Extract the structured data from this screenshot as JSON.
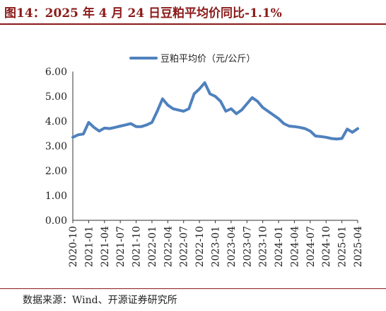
{
  "header": {
    "title": "图14：2025 年 4 月 24 日豆粕平均价同比-1.1%"
  },
  "footer": {
    "source": "数据来源：Wind、开源证券研究所"
  },
  "style": {
    "series_color": "#4f81bd",
    "title_color": "#8b1a1a"
  },
  "chart_data": {
    "type": "line",
    "title": "",
    "xlabel": "",
    "ylabel": "",
    "ylim": [
      0,
      6
    ],
    "yticks": [
      "0.00",
      "1.00",
      "2.00",
      "3.00",
      "4.00",
      "5.00",
      "6.00"
    ],
    "xticks": [
      "2020-10",
      "2021-01",
      "2021-04",
      "2021-07",
      "2021-10",
      "2022-01",
      "2022-04",
      "2022-07",
      "2022-10",
      "2023-01",
      "2023-04",
      "2023-07",
      "2023-10",
      "2024-01",
      "2024-04",
      "2024-07",
      "2024-10",
      "2025-01",
      "2025-04"
    ],
    "legend": {
      "position": "top-center"
    },
    "grid": false,
    "series": [
      {
        "name": "豆粕平均价（元/公斤）",
        "points": [
          [
            "2020-10",
            3.35
          ],
          [
            "2020-11",
            3.45
          ],
          [
            "2020-12",
            3.48
          ],
          [
            "2021-01",
            3.95
          ],
          [
            "2021-02",
            3.75
          ],
          [
            "2021-03",
            3.6
          ],
          [
            "2021-04",
            3.72
          ],
          [
            "2021-05",
            3.7
          ],
          [
            "2021-06",
            3.75
          ],
          [
            "2021-07",
            3.8
          ],
          [
            "2021-08",
            3.85
          ],
          [
            "2021-09",
            3.9
          ],
          [
            "2021-10",
            3.78
          ],
          [
            "2021-11",
            3.78
          ],
          [
            "2021-12",
            3.85
          ],
          [
            "2022-01",
            3.95
          ],
          [
            "2022-02",
            4.4
          ],
          [
            "2022-03",
            4.9
          ],
          [
            "2022-04",
            4.65
          ],
          [
            "2022-05",
            4.5
          ],
          [
            "2022-06",
            4.45
          ],
          [
            "2022-07",
            4.4
          ],
          [
            "2022-08",
            4.5
          ],
          [
            "2022-09",
            5.1
          ],
          [
            "2022-10",
            5.3
          ],
          [
            "2022-11",
            5.55
          ],
          [
            "2022-12",
            5.1
          ],
          [
            "2023-01",
            5.0
          ],
          [
            "2023-02",
            4.8
          ],
          [
            "2023-03",
            4.4
          ],
          [
            "2023-04",
            4.5
          ],
          [
            "2023-05",
            4.3
          ],
          [
            "2023-06",
            4.45
          ],
          [
            "2023-07",
            4.7
          ],
          [
            "2023-08",
            4.95
          ],
          [
            "2023-09",
            4.8
          ],
          [
            "2023-10",
            4.55
          ],
          [
            "2023-11",
            4.4
          ],
          [
            "2023-12",
            4.25
          ],
          [
            "2024-01",
            4.1
          ],
          [
            "2024-02",
            3.9
          ],
          [
            "2024-03",
            3.8
          ],
          [
            "2024-04",
            3.78
          ],
          [
            "2024-05",
            3.75
          ],
          [
            "2024-06",
            3.7
          ],
          [
            "2024-07",
            3.6
          ],
          [
            "2024-08",
            3.4
          ],
          [
            "2024-09",
            3.38
          ],
          [
            "2024-10",
            3.35
          ],
          [
            "2024-11",
            3.3
          ],
          [
            "2024-12",
            3.28
          ],
          [
            "2025-01",
            3.3
          ],
          [
            "2025-02",
            3.68
          ],
          [
            "2025-03",
            3.55
          ],
          [
            "2025-04",
            3.7
          ]
        ]
      }
    ]
  }
}
